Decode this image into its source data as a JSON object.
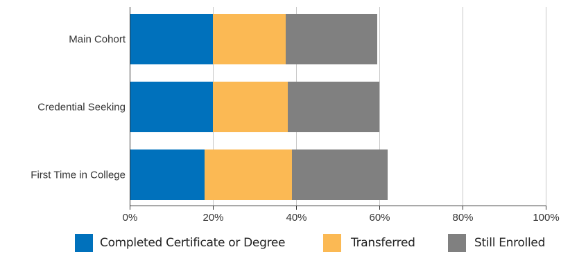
{
  "chart_data": {
    "type": "bar",
    "orientation": "horizontal",
    "stacked": true,
    "categories": [
      "Main Cohort",
      "Credential Seeking",
      "First Time in College"
    ],
    "series": [
      {
        "name": "Completed Certificate or Degree",
        "color": "#0071bc",
        "values": [
          20,
          20,
          18
        ]
      },
      {
        "name": "Transferred",
        "color": "#fbb954",
        "values": [
          17.5,
          18,
          21
        ]
      },
      {
        "name": "Still Enrolled",
        "color": "#808080",
        "values": [
          22,
          22,
          23
        ]
      }
    ],
    "xlim": [
      0,
      100
    ],
    "xticks": [
      "0%",
      "20%",
      "40%",
      "60%",
      "80%",
      "100%"
    ],
    "grid": "vertical",
    "legend_position": "bottom",
    "title": "",
    "xlabel": "",
    "ylabel": ""
  }
}
